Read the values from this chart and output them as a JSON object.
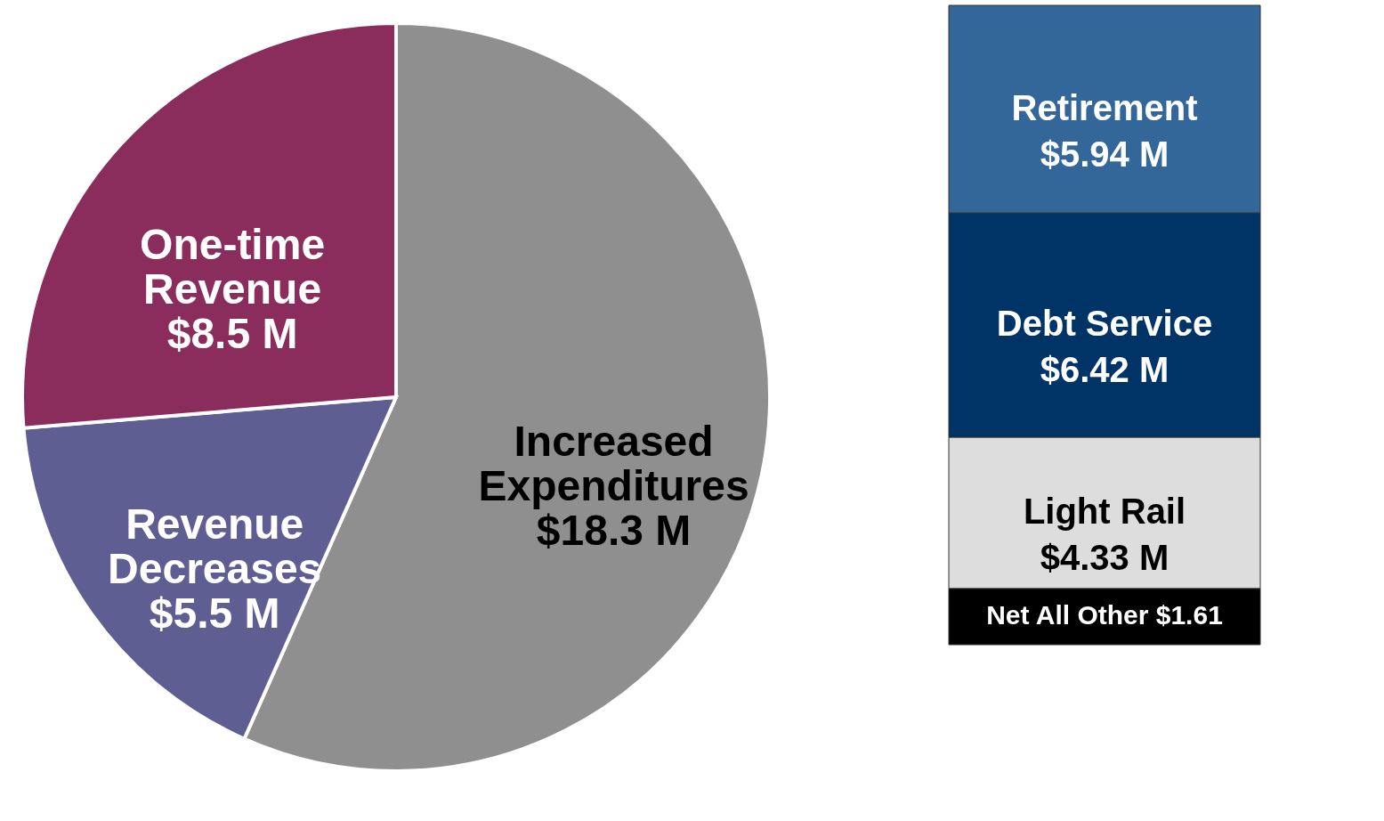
{
  "chart_data": [
    {
      "type": "pie",
      "categories": [
        "Increased\nExpenditures",
        "Revenue\nDecreases",
        "One-time\nRevenue"
      ],
      "values": [
        18.3,
        5.5,
        8.5
      ],
      "colors": [
        "#8f8f8f",
        "#5f5e92",
        "#8b2d5c"
      ],
      "value_labels": [
        "$18.3 M",
        "$5.5 M",
        "$8.5 M"
      ]
    },
    {
      "type": "bar",
      "stacked": true,
      "categories": [
        null
      ],
      "series": [
        {
          "name": "Net All Other",
          "color": "#000000",
          "values": [
            1.61
          ],
          "value_labels": [
            "$1.61"
          ]
        },
        {
          "name": "Light Rail",
          "color": "#dddddd",
          "values": [
            4.33
          ],
          "value_labels": [
            "$4.33 M"
          ]
        },
        {
          "name": "Debt Service",
          "color": "#003366",
          "values": [
            6.42
          ],
          "value_labels": [
            "$6.42 M"
          ]
        },
        {
          "name": "Retirement",
          "color": "#336699",
          "values": [
            5.94
          ],
          "value_labels": [
            "$5.94 M"
          ]
        }
      ]
    }
  ]
}
